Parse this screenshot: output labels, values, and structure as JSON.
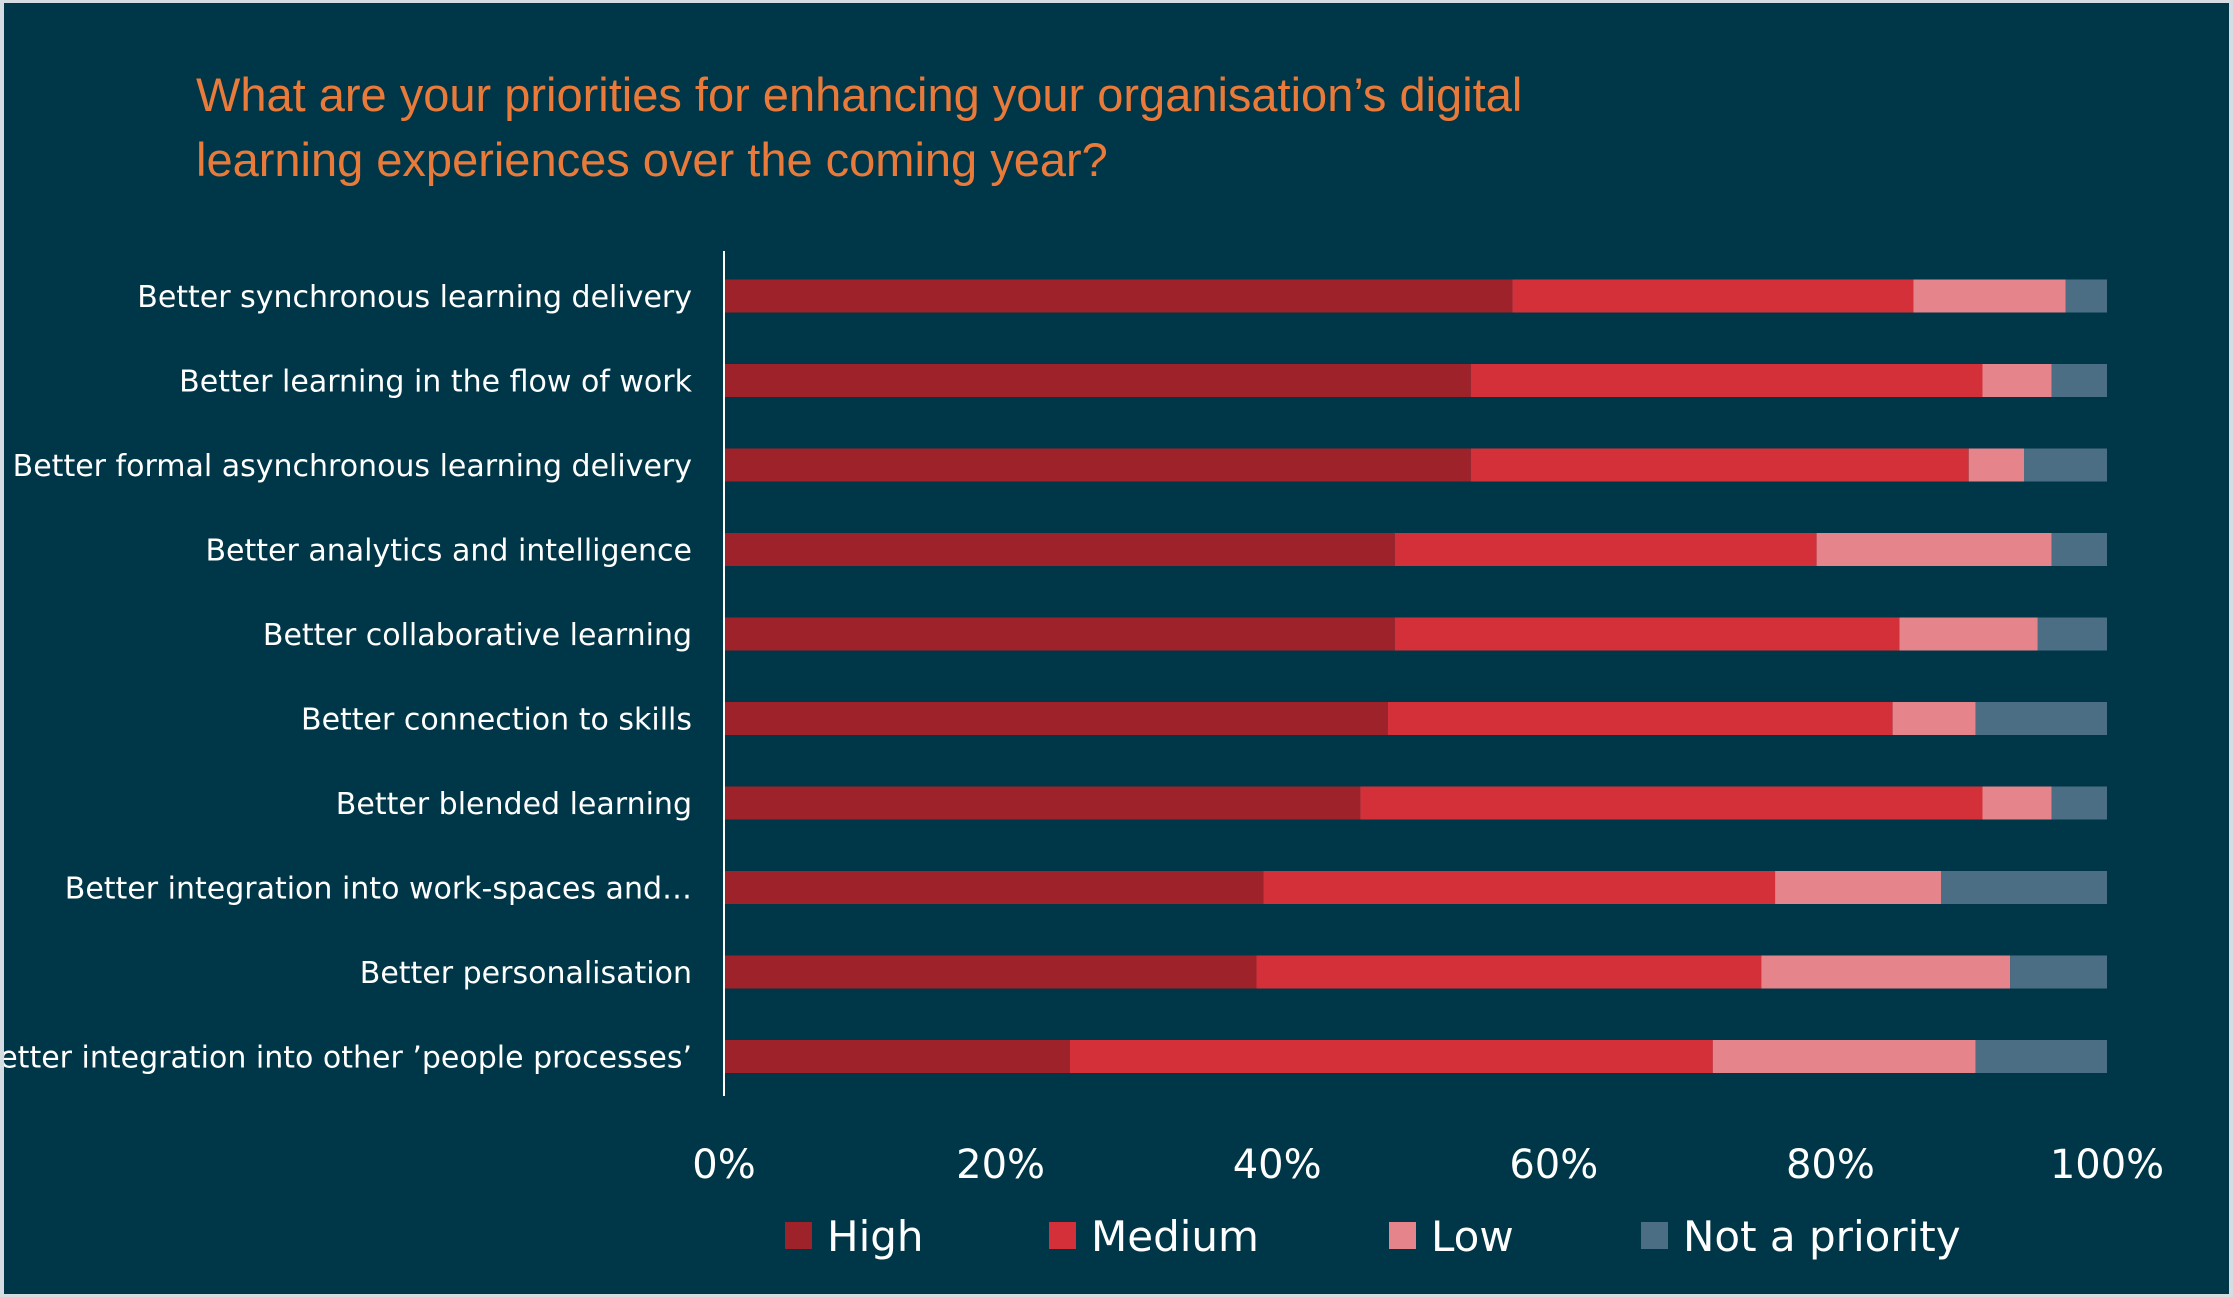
{
  "chart_data": {
    "type": "bar",
    "orientation": "horizontal",
    "stacked": true,
    "percent": true,
    "title_lines": [
      "What are your priorities for enhancing your organisation’s digital",
      "learning experiences over the coming year?"
    ],
    "categories": [
      "Better synchronous learning delivery",
      "Better learning in the flow of work",
      "Better formal asynchronous learning delivery",
      "Better analytics and intelligence",
      "Better collaborative learning",
      "Better connection to skills",
      "Better blended learning",
      "Better integration into work-spaces and…",
      "Better personalisation",
      "Better integration into other ’people processes’"
    ],
    "series": [
      {
        "name": "High",
        "color": "#9e2229",
        "values": [
          57,
          54,
          54,
          48.5,
          48.5,
          48,
          46,
          39,
          38.5,
          25
        ]
      },
      {
        "name": "Medium",
        "color": "#d3303a",
        "values": [
          29,
          37,
          36,
          30.5,
          36.5,
          36.5,
          45,
          37,
          36.5,
          46.5
        ]
      },
      {
        "name": "Low",
        "color": "#e5858b",
        "values": [
          11,
          5,
          4,
          17,
          10,
          6,
          5,
          12,
          18,
          19
        ]
      },
      {
        "name": "Not a priority",
        "color": "#4b6e84",
        "values": [
          3,
          4,
          6,
          4,
          5,
          9.5,
          4,
          12,
          7,
          9.5
        ]
      }
    ],
    "xlim": [
      0,
      100
    ],
    "x_ticks": [
      "0%",
      "20%",
      "40%",
      "60%",
      "80%",
      "100%"
    ],
    "legend_position": "bottom",
    "grid": false
  }
}
